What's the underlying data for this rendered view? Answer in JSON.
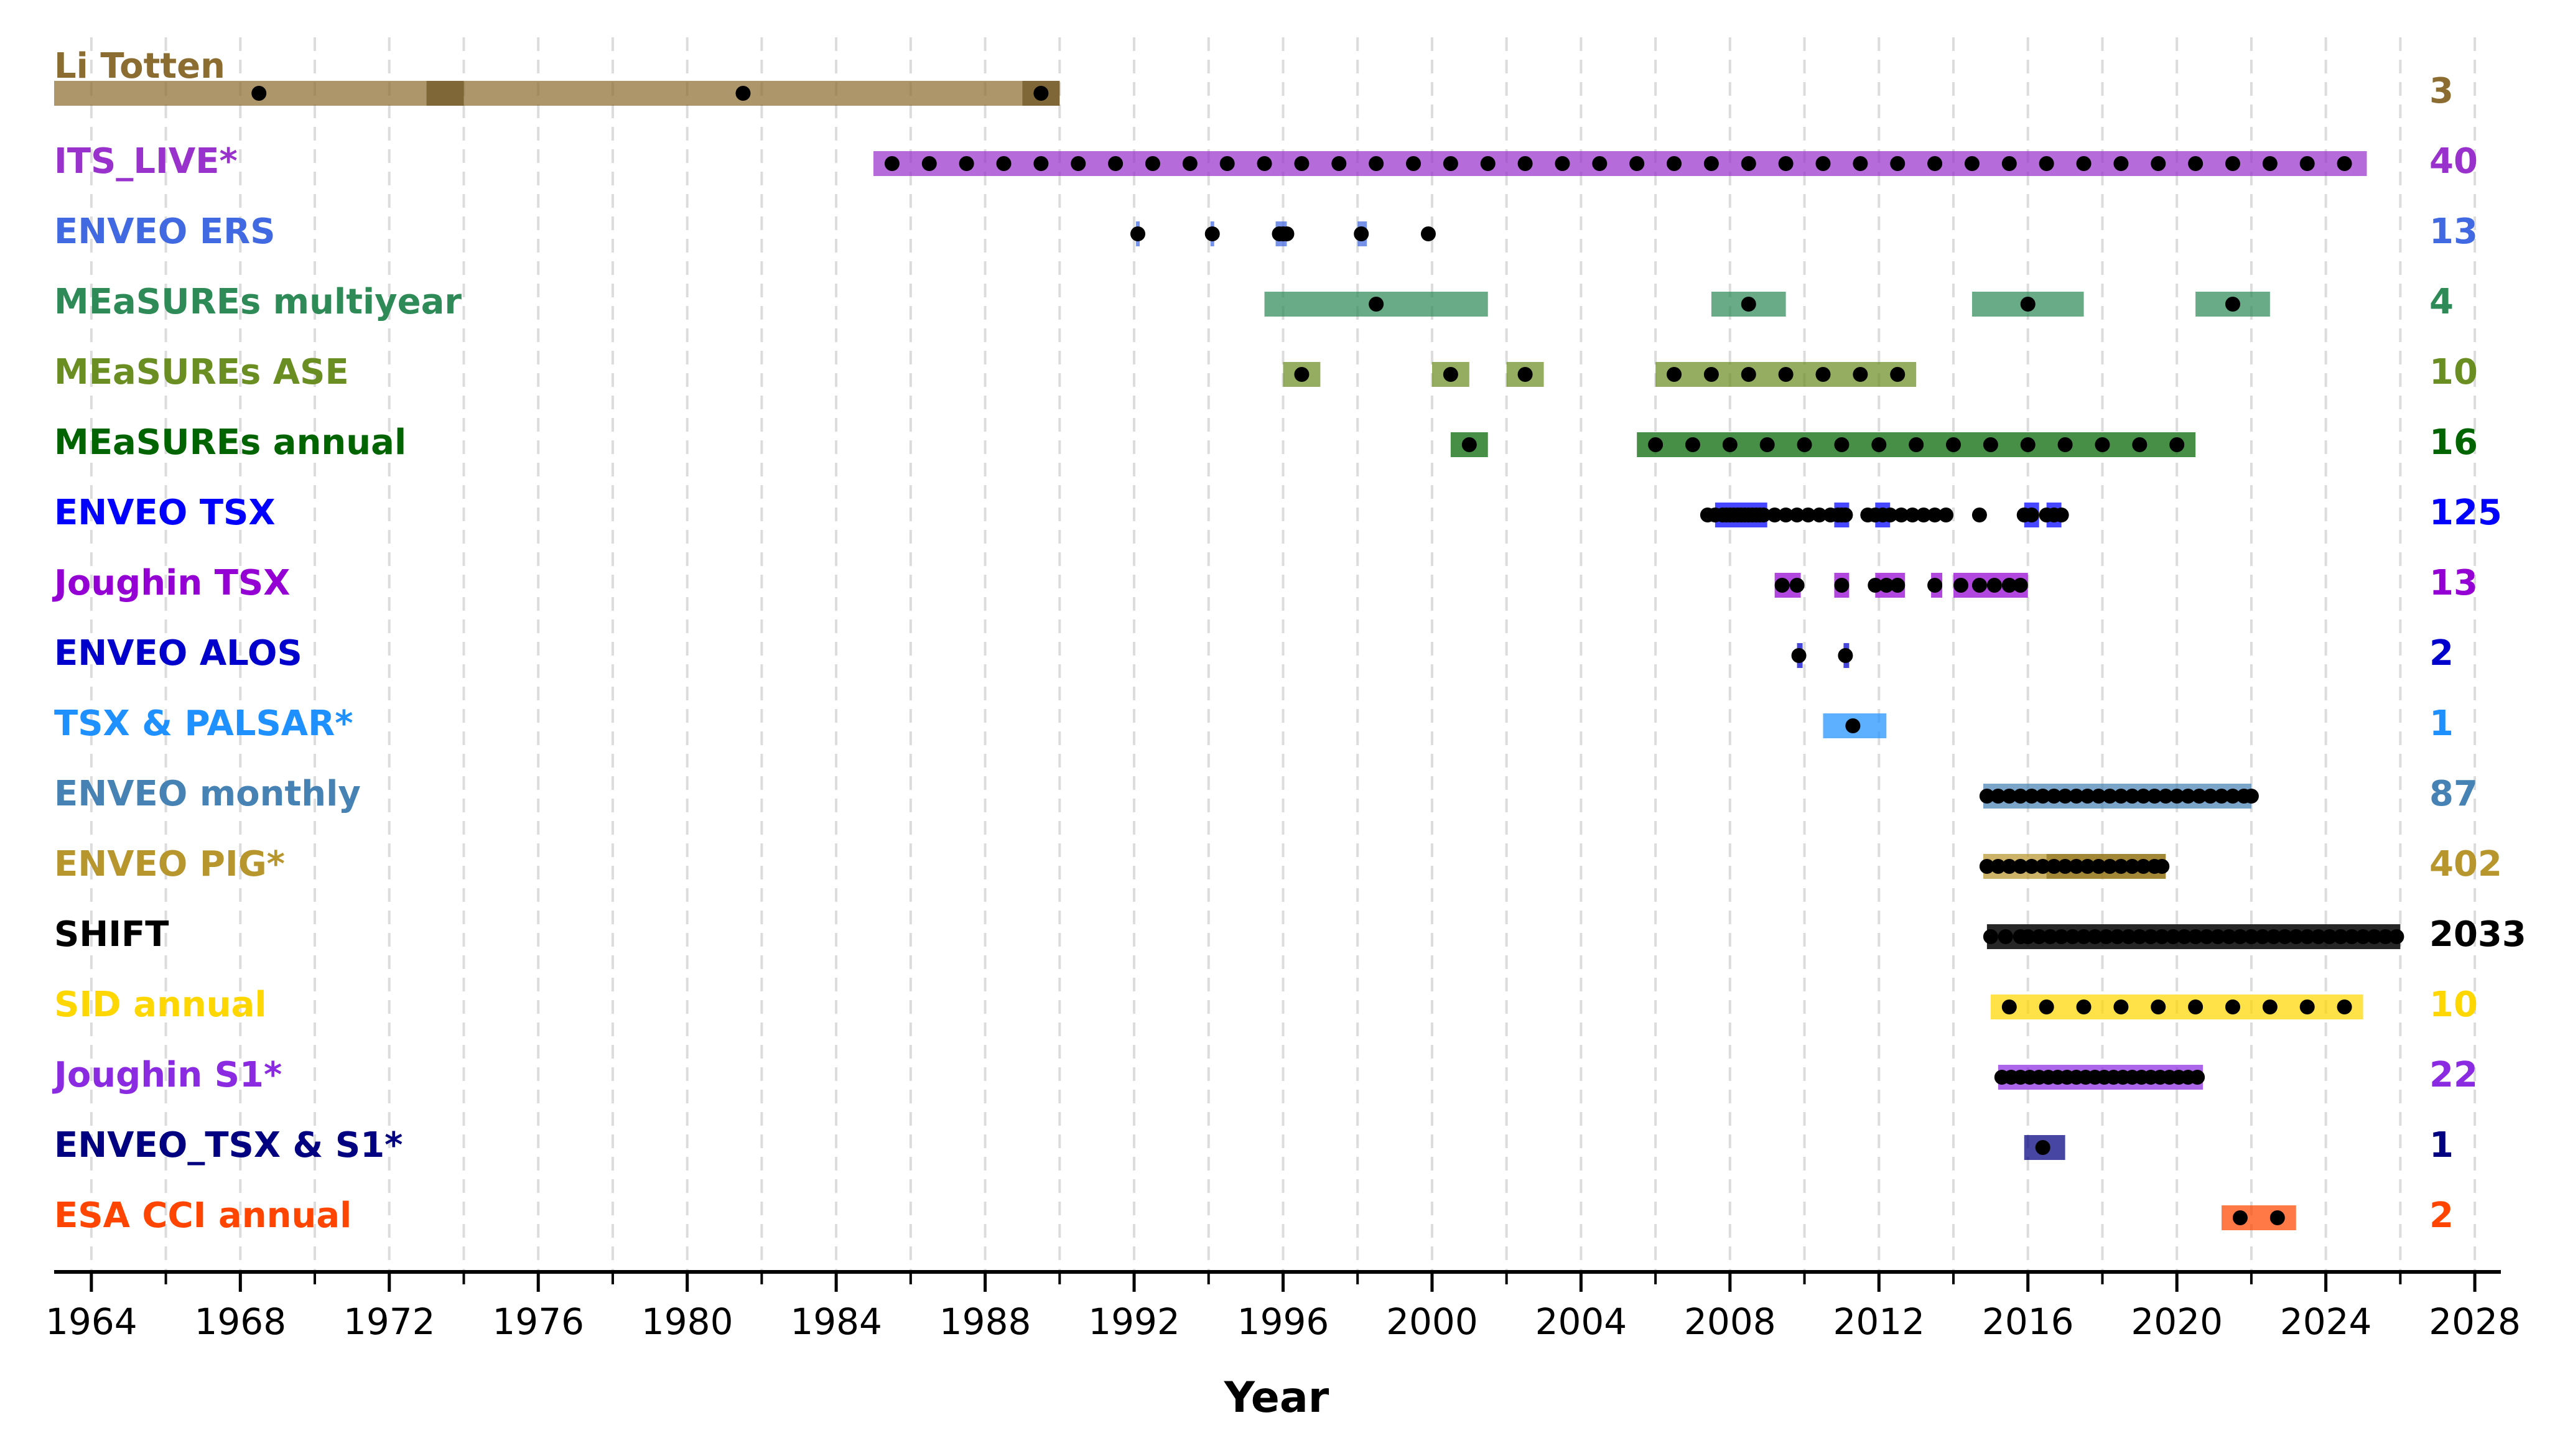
{
  "chart_data": {
    "type": "timeline",
    "xlabel": "Year",
    "xlim": [
      1963,
      2028.7
    ],
    "xticks": [
      1964,
      1968,
      1972,
      1976,
      1980,
      1984,
      1988,
      1992,
      1996,
      2000,
      2004,
      2008,
      2012,
      2016,
      2020,
      2024,
      2028
    ],
    "grid": "vertical dashed at every 2 years",
    "marker_color": "#000000",
    "rows": [
      {
        "name": "Li Totten",
        "count": "3",
        "color": "#8c6d31",
        "bars": [
          [
            1963,
            1990
          ]
        ],
        "dark_segments": [
          [
            1973,
            1974
          ],
          [
            1989,
            1990
          ]
        ],
        "points": [
          1968.5,
          1981.5,
          1989.5
        ]
      },
      {
        "name": "ITS_LIVE*",
        "count": "40",
        "color": "#9932cc",
        "bars": [
          [
            1985,
            2025.1
          ]
        ],
        "points": [
          1985.5,
          1986.5,
          1987.5,
          1988.5,
          1989.5,
          1990.5,
          1991.5,
          1992.5,
          1993.5,
          1994.5,
          1995.5,
          1996.5,
          1997.5,
          1998.5,
          1999.5,
          2000.5,
          2001.5,
          2002.5,
          2003.5,
          2004.5,
          2005.5,
          2006.5,
          2007.5,
          2008.5,
          2009.5,
          2010.5,
          2011.5,
          2012.5,
          2013.5,
          2014.5,
          2015.5,
          2016.5,
          2017.5,
          2018.5,
          2019.5,
          2020.5,
          2021.5,
          2022.5,
          2023.5,
          2024.5
        ]
      },
      {
        "name": "ENVEO ERS",
        "count": "13",
        "color": "#4169e1",
        "bars": [
          [
            1992.05,
            1992.15
          ],
          [
            1994.05,
            1994.15
          ],
          [
            1995.8,
            1996.1
          ],
          [
            1998.0,
            1998.25
          ]
        ],
        "points": [
          1992.1,
          1994.1,
          1995.9,
          1996.0,
          1996.1,
          1998.1,
          1999.9
        ]
      },
      {
        "name": "MEaSUREs multiyear",
        "count": "4",
        "color": "#2e8b57",
        "bars": [
          [
            1995.5,
            2001.5
          ],
          [
            2007.5,
            2009.5
          ],
          [
            2014.5,
            2017.5
          ],
          [
            2020.5,
            2022.5
          ]
        ],
        "points": [
          1998.5,
          2008.5,
          2016,
          2021.5
        ]
      },
      {
        "name": "MEaSUREs ASE",
        "count": "10",
        "color": "#6b8e23",
        "bars": [
          [
            1996,
            1997
          ],
          [
            2000,
            2001
          ],
          [
            2002,
            2003
          ],
          [
            2006,
            2013
          ]
        ],
        "points": [
          1996.5,
          2000.5,
          2002.5,
          2006.5,
          2007.5,
          2008.5,
          2009.5,
          2010.5,
          2011.5,
          2012.5
        ]
      },
      {
        "name": "MEaSUREs annual",
        "count": "16",
        "color": "#006400",
        "bars": [
          [
            2000.5,
            2001.5
          ],
          [
            2005.5,
            2020.5
          ]
        ],
        "points": [
          2001,
          2006,
          2007,
          2008,
          2009,
          2010,
          2011,
          2012,
          2013,
          2014,
          2015,
          2016,
          2017,
          2018,
          2019,
          2020
        ]
      },
      {
        "name": "ENVEO TSX",
        "count": "125",
        "color": "#0000ff",
        "bars": [
          [
            2007.6,
            2009.0
          ],
          [
            2010.8,
            2011.2
          ],
          [
            2011.9,
            2012.3
          ],
          [
            2015.9,
            2016.3
          ],
          [
            2016.5,
            2016.9
          ]
        ],
        "points": [
          2007.4,
          2007.6,
          2007.8,
          2007.9,
          2008.0,
          2008.1,
          2008.2,
          2008.3,
          2008.4,
          2008.5,
          2008.6,
          2008.7,
          2008.8,
          2008.9,
          2009.2,
          2009.5,
          2009.8,
          2010.1,
          2010.4,
          2010.7,
          2010.9,
          2011.0,
          2011.1,
          2011.7,
          2011.9,
          2012.1,
          2012.3,
          2012.6,
          2012.9,
          2013.2,
          2013.5,
          2013.8,
          2014.7,
          2015.9,
          2016.1,
          2016.5,
          2016.7,
          2016.9
        ]
      },
      {
        "name": "Joughin TSX",
        "count": "13",
        "color": "#9400d3",
        "bars": [
          [
            2009.2,
            2009.9
          ],
          [
            2010.8,
            2011.2
          ],
          [
            2011.9,
            2012.7
          ],
          [
            2013.4,
            2013.7
          ],
          [
            2014.0,
            2016.0
          ]
        ],
        "points": [
          2009.4,
          2009.8,
          2011.0,
          2011.9,
          2012.2,
          2012.5,
          2013.5,
          2014.2,
          2014.7,
          2015.1,
          2015.5,
          2015.8
        ]
      },
      {
        "name": "ENVEO ALOS",
        "count": "2",
        "color": "#0000cd",
        "bars": [
          [
            2009.8,
            2009.95
          ],
          [
            2011.05,
            2011.2
          ]
        ],
        "points": [
          2009.85,
          2011.1
        ]
      },
      {
        "name": "TSX & PALSAR*",
        "count": "1",
        "color": "#1e90ff",
        "bars": [
          [
            2010.5,
            2012.2
          ]
        ],
        "points": [
          2011.3
        ]
      },
      {
        "name": "ENVEO monthly",
        "count": "87",
        "color": "#4682b4",
        "bars": [
          [
            2014.8,
            2022
          ]
        ],
        "points": [
          2014.9,
          2015.2,
          2015.5,
          2015.8,
          2016.1,
          2016.4,
          2016.7,
          2017.0,
          2017.3,
          2017.6,
          2017.9,
          2018.2,
          2018.5,
          2018.8,
          2019.1,
          2019.4,
          2019.7,
          2020.0,
          2020.3,
          2020.6,
          2020.9,
          2021.2,
          2021.5,
          2021.8,
          2022.0
        ]
      },
      {
        "name": "ENVEO PIG*",
        "count": "402",
        "color": "#b8962e",
        "bars": [
          [
            2014.8,
            2019.7
          ]
        ],
        "dark_segments": [
          [
            2016.5,
            2019.7
          ]
        ],
        "points": [
          2014.9,
          2015.2,
          2015.5,
          2015.8,
          2016.1,
          2016.4,
          2016.7,
          2017.0,
          2017.3,
          2017.6,
          2017.9,
          2018.2,
          2018.5,
          2018.8,
          2019.1,
          2019.4,
          2019.6
        ]
      },
      {
        "name": "SHIFT",
        "count": "2033",
        "color": "#000000",
        "bars": [
          [
            2014.9,
            2026.0
          ]
        ],
        "points": [
          2015.0,
          2015.4,
          2015.8,
          2016.0,
          2016.3,
          2016.6,
          2016.9,
          2017.2,
          2017.5,
          2017.8,
          2018.1,
          2018.4,
          2018.7,
          2019.0,
          2019.3,
          2019.6,
          2019.9,
          2020.2,
          2020.5,
          2020.8,
          2021.1,
          2021.4,
          2021.7,
          2022.0,
          2022.3,
          2022.6,
          2022.9,
          2023.2,
          2023.5,
          2023.8,
          2024.1,
          2024.4,
          2024.7,
          2025.0,
          2025.3,
          2025.6,
          2025.9
        ]
      },
      {
        "name": "SID annual",
        "count": "10",
        "color": "#ffd700",
        "bars": [
          [
            2015,
            2025
          ]
        ],
        "points": [
          2015.5,
          2016.5,
          2017.5,
          2018.5,
          2019.5,
          2020.5,
          2021.5,
          2022.5,
          2023.5,
          2024.5
        ]
      },
      {
        "name": "Joughin S1*",
        "count": "22",
        "color": "#8a2be2",
        "bars": [
          [
            2015.2,
            2020.7
          ]
        ],
        "points": [
          2015.3,
          2015.55,
          2015.8,
          2016.05,
          2016.3,
          2016.55,
          2016.8,
          2017.05,
          2017.3,
          2017.55,
          2017.8,
          2018.05,
          2018.3,
          2018.55,
          2018.8,
          2019.05,
          2019.3,
          2019.55,
          2019.8,
          2020.05,
          2020.3,
          2020.55
        ]
      },
      {
        "name": "ENVEO_TSX & S1*",
        "count": "1",
        "color": "#000080",
        "bars": [
          [
            2015.9,
            2017.0
          ]
        ],
        "points": [
          2016.4
        ]
      },
      {
        "name": "ESA CCI annual",
        "count": "2",
        "color": "#ff4500",
        "bars": [
          [
            2021.2,
            2023.2
          ]
        ],
        "points": [
          2021.7,
          2022.7
        ]
      }
    ]
  }
}
